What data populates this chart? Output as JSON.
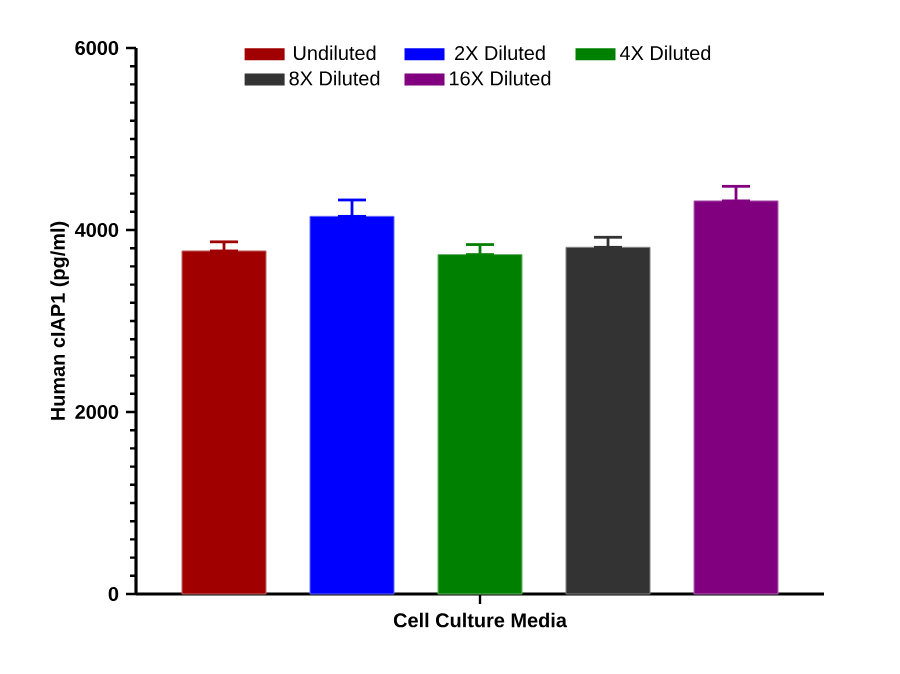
{
  "chart_data": {
    "type": "bar",
    "xlabel": "Cell Culture Media",
    "ylabel": "Human cIAP1 (pg/ml)",
    "categories": [
      null
    ],
    "ylim": [
      0,
      6000
    ],
    "yticks": [
      0,
      2000,
      4000,
      6000
    ],
    "legend": "top",
    "grid": false,
    "series": [
      {
        "name": "Undiluted",
        "color": "#a00000",
        "values": [
          3770
        ],
        "errors": [
          [
            3770,
            3870
          ]
        ]
      },
      {
        "name": "2X Diluted",
        "color": "#0000ff",
        "values": [
          4150
        ],
        "errors": [
          [
            4150,
            4330
          ]
        ]
      },
      {
        "name": "4X Diluted",
        "color": "#008000",
        "values": [
          3730
        ],
        "errors": [
          [
            3730,
            3840
          ]
        ]
      },
      {
        "name": "8X Diluted",
        "color": "#333333",
        "values": [
          3810
        ],
        "errors": [
          [
            3810,
            3920
          ]
        ]
      },
      {
        "name": "16X Diluted",
        "color": "#800080",
        "values": [
          4320
        ],
        "errors": [
          [
            4320,
            4480
          ]
        ]
      }
    ]
  }
}
